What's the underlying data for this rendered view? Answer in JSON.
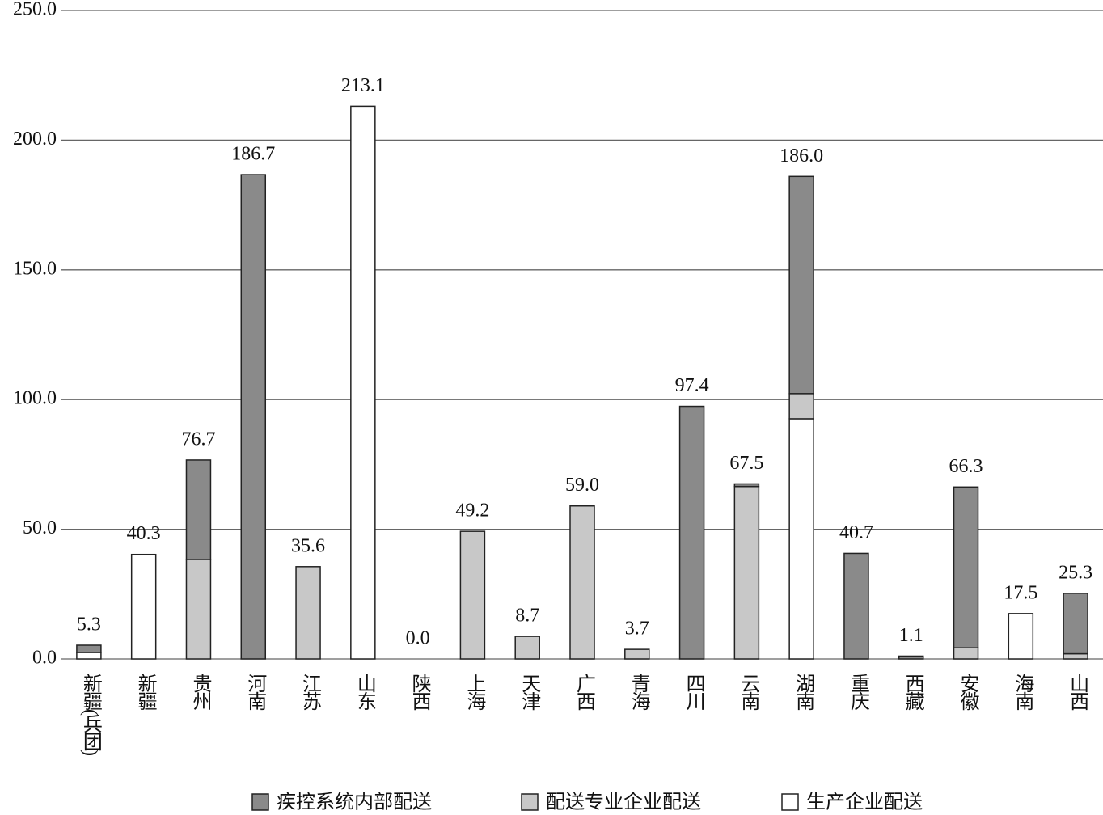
{
  "chart_data": {
    "type": "stacked-bar",
    "categories": [
      "新疆(兵团)",
      "新疆",
      "贵州",
      "河南",
      "江苏",
      "山东",
      "陕西",
      "上海",
      "天津",
      "广西",
      "青海",
      "四川",
      "云南",
      "湖南",
      "重庆",
      "西藏",
      "安徽",
      "海南",
      "山西"
    ],
    "series": [
      {
        "name": "生产企业配送",
        "color": "#ffffff",
        "values": [
          2.5,
          40.3,
          0,
          0,
          0,
          213.1,
          0,
          0,
          0,
          0,
          0,
          0,
          0,
          92.6,
          0,
          0,
          0,
          17.5,
          0
        ]
      },
      {
        "name": "配送专业企业配送",
        "color": "#c8c8c8",
        "values": [
          0,
          0,
          38.3,
          0,
          35.6,
          0,
          0,
          49.2,
          8.7,
          59.0,
          3.7,
          0,
          66.5,
          9.7,
          0,
          0,
          4.3,
          0,
          2.0
        ]
      },
      {
        "name": "疾控系统内部配送",
        "color": "#8a8a8a",
        "values": [
          2.8,
          0,
          38.4,
          186.7,
          0,
          0,
          0,
          0,
          0,
          0,
          0,
          97.4,
          1.0,
          83.7,
          40.7,
          1.1,
          62.0,
          0,
          23.3
        ]
      }
    ],
    "totals": [
      5.3,
      40.3,
      76.7,
      186.7,
      35.6,
      213.1,
      0,
      49.2,
      8.7,
      59.0,
      3.7,
      97.4,
      67.5,
      186.0,
      40.7,
      1.1,
      66.3,
      17.5,
      25.3
    ],
    "total_labels": [
      "5.3",
      "40.3",
      "76.7",
      "186.7",
      "35.6",
      "213.1",
      "0.0",
      "49.2",
      "8.7",
      "59.0",
      "3.7",
      "97.4",
      "67.5",
      "186.0",
      "40.7",
      "1.1",
      "66.3",
      "17.5",
      "25.3"
    ],
    "ylim": [
      0,
      250
    ],
    "yticks": [
      {
        "value": 0,
        "label": "0.0"
      },
      {
        "value": 50,
        "label": "50.0"
      },
      {
        "value": 100,
        "label": "100.0"
      },
      {
        "value": 150,
        "label": "150.0"
      },
      {
        "value": 200,
        "label": "200.0"
      },
      {
        "value": 250,
        "label": "250.0"
      }
    ],
    "grid": true,
    "legend": "bottom"
  }
}
